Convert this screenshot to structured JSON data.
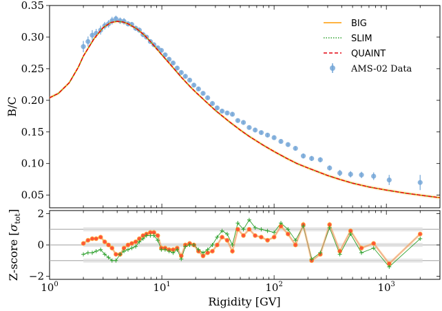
{
  "chart_data": [
    {
      "type": "line",
      "ylabel": "B/C",
      "xscale": "log",
      "xlim": [
        1,
        3000
      ],
      "ylim": [
        0.03,
        0.35
      ],
      "yticks": [
        "0.05",
        "0.10",
        "0.15",
        "0.20",
        "0.25",
        "0.30",
        "0.35"
      ],
      "ytick_values": [
        0.05,
        0.1,
        0.15,
        0.2,
        0.25,
        0.3,
        0.35
      ],
      "legend_position": "top-right",
      "grid": false,
      "model_x": [
        1.0,
        1.2,
        1.5,
        1.8,
        2.0,
        2.5,
        3.0,
        3.5,
        4.0,
        4.5,
        5.0,
        6.0,
        7.0,
        8.0,
        10,
        12,
        15,
        18,
        20,
        25,
        30,
        40,
        50,
        60,
        80,
        100,
        130,
        160,
        200,
        300,
        400,
        500,
        700,
        1000,
        1500,
        2000,
        3000
      ],
      "series": [
        {
          "name": "BIG",
          "color": "#ff9a00",
          "style": "solid",
          "values": [
            0.204,
            0.211,
            0.228,
            0.252,
            0.27,
            0.298,
            0.315,
            0.323,
            0.325,
            0.324,
            0.321,
            0.313,
            0.303,
            0.292,
            0.272,
            0.256,
            0.236,
            0.221,
            0.213,
            0.197,
            0.184,
            0.166,
            0.153,
            0.143,
            0.129,
            0.119,
            0.108,
            0.1,
            0.093,
            0.081,
            0.074,
            0.069,
            0.063,
            0.058,
            0.053,
            0.05,
            0.046
          ]
        },
        {
          "name": "SLIM",
          "color": "#2ca02c",
          "style": "dotted",
          "values": [
            0.204,
            0.211,
            0.228,
            0.252,
            0.27,
            0.298,
            0.315,
            0.323,
            0.325,
            0.324,
            0.321,
            0.313,
            0.303,
            0.292,
            0.272,
            0.256,
            0.236,
            0.221,
            0.213,
            0.197,
            0.184,
            0.166,
            0.153,
            0.143,
            0.129,
            0.119,
            0.108,
            0.1,
            0.093,
            0.081,
            0.074,
            0.069,
            0.063,
            0.058,
            0.053,
            0.05,
            0.046
          ]
        },
        {
          "name": "QUAINT",
          "color": "#e4000f",
          "style": "dashed",
          "values": [
            0.204,
            0.211,
            0.228,
            0.252,
            0.27,
            0.298,
            0.315,
            0.323,
            0.325,
            0.324,
            0.321,
            0.313,
            0.303,
            0.292,
            0.272,
            0.256,
            0.236,
            0.221,
            0.213,
            0.197,
            0.184,
            0.166,
            0.153,
            0.143,
            0.129,
            0.119,
            0.108,
            0.1,
            0.093,
            0.081,
            0.074,
            0.069,
            0.063,
            0.058,
            0.053,
            0.05,
            0.046
          ]
        }
      ],
      "data_series": {
        "name": "AMS-02 Data",
        "color": "#6fa3d6",
        "x": [
          2.0,
          2.2,
          2.4,
          2.6,
          2.85,
          3.1,
          3.35,
          3.6,
          3.9,
          4.25,
          4.6,
          5.0,
          5.4,
          5.85,
          6.3,
          6.8,
          7.3,
          7.9,
          8.5,
          9.2,
          9.9,
          10.7,
          11.6,
          12.6,
          13.7,
          14.9,
          16.2,
          17.7,
          19.3,
          21.2,
          23.3,
          25.6,
          28.2,
          31.1,
          34.4,
          38.2,
          42.5,
          47.5,
          53.3,
          60.0,
          67.8,
          76.8,
          87.4,
          100,
          115,
          133,
          155,
          182,
          216,
          258,
          312,
          385,
          480,
          600,
          770,
          1060,
          2000
        ],
        "y": [
          0.285,
          0.293,
          0.303,
          0.306,
          0.311,
          0.318,
          0.321,
          0.326,
          0.329,
          0.326,
          0.325,
          0.321,
          0.32,
          0.314,
          0.311,
          0.304,
          0.3,
          0.293,
          0.288,
          0.283,
          0.279,
          0.272,
          0.265,
          0.259,
          0.251,
          0.244,
          0.238,
          0.232,
          0.224,
          0.218,
          0.211,
          0.204,
          0.195,
          0.188,
          0.183,
          0.18,
          0.178,
          0.168,
          0.165,
          0.157,
          0.153,
          0.149,
          0.145,
          0.141,
          0.135,
          0.13,
          0.124,
          0.112,
          0.108,
          0.106,
          0.093,
          0.085,
          0.083,
          0.082,
          0.08,
          0.074,
          0.07
        ],
        "err": [
          0.009,
          0.008,
          0.008,
          0.007,
          0.007,
          0.006,
          0.006,
          0.006,
          0.005,
          0.005,
          0.005,
          0.004,
          0.004,
          0.004,
          0.004,
          0.004,
          0.003,
          0.003,
          0.003,
          0.003,
          0.003,
          0.003,
          0.003,
          0.003,
          0.003,
          0.003,
          0.003,
          0.003,
          0.003,
          0.003,
          0.003,
          0.003,
          0.003,
          0.003,
          0.003,
          0.003,
          0.003,
          0.003,
          0.003,
          0.003,
          0.003,
          0.003,
          0.003,
          0.003,
          0.003,
          0.003,
          0.003,
          0.004,
          0.004,
          0.004,
          0.004,
          0.005,
          0.005,
          0.005,
          0.006,
          0.008,
          0.012
        ]
      }
    },
    {
      "type": "line",
      "xlabel": "Rigidity [GV]",
      "ylabel_prefix": "Z-score [",
      "ylabel_symbol": "σ",
      "ylabel_subscript": "tot",
      "ylabel_suffix": "]",
      "xscale": "log",
      "xlim": [
        1,
        3000
      ],
      "ylim": [
        -2.2,
        2.2
      ],
      "xticks": [
        {
          "base": "10",
          "exp": "0",
          "value": 1
        },
        {
          "base": "10",
          "exp": "1",
          "value": 10
        },
        {
          "base": "10",
          "exp": "2",
          "value": 100
        },
        {
          "base": "10",
          "exp": "3",
          "value": 1000
        }
      ],
      "yticks": [
        "−2",
        "0",
        "2"
      ],
      "ytick_values": [
        -2,
        0,
        2
      ],
      "reference_lines": [
        -1,
        0,
        1
      ],
      "reference_band_x": [
        2,
        2100
      ],
      "series": [
        {
          "name": "BIG",
          "color": "#ff9a00",
          "marker": "dot",
          "values": [
            0.1,
            0.3,
            0.4,
            0.4,
            0.5,
            0.2,
            0.0,
            -0.2,
            -0.6,
            -0.6,
            -0.2,
            0.0,
            0.1,
            0.2,
            0.4,
            0.6,
            0.7,
            0.8,
            0.8,
            0.6,
            -0.2,
            -0.2,
            -0.3,
            -0.3,
            -0.2,
            -0.7,
            0.0,
            0.1,
            0.0,
            -0.4,
            -0.7,
            -0.5,
            -0.4,
            0.0,
            0.5,
            0.3,
            -0.4,
            1.0,
            0.6,
            1.0,
            0.6,
            0.5,
            0.3,
            0.5,
            1.2,
            0.7,
            0.0,
            1.3,
            -1.0,
            -0.6,
            1.3,
            -0.4,
            0.9,
            -0.2,
            0.1,
            -1.2,
            0.7
          ]
        },
        {
          "name": "SLIM",
          "color": "#2ca02c",
          "marker": "plus",
          "values": [
            -0.6,
            -0.5,
            -0.5,
            -0.4,
            -0.3,
            -0.6,
            -0.8,
            -1.0,
            -1.0,
            -0.6,
            -0.4,
            -0.3,
            -0.2,
            -0.1,
            0.2,
            0.4,
            0.6,
            0.6,
            0.6,
            0.3,
            -0.3,
            -0.3,
            -0.4,
            -0.5,
            -0.3,
            -0.9,
            -0.1,
            0.0,
            0.0,
            -0.3,
            -0.5,
            -0.3,
            0.0,
            0.5,
            0.9,
            0.7,
            0.0,
            1.4,
            1.0,
            1.6,
            1.1,
            1.0,
            0.9,
            0.8,
            1.4,
            1.0,
            0.3,
            1.2,
            -0.9,
            -0.5,
            1.1,
            -0.6,
            0.7,
            -0.5,
            -0.2,
            -1.4,
            0.4
          ]
        },
        {
          "name": "QUAINT",
          "color": "#ff3b3b",
          "marker": "dot",
          "values": [
            0.1,
            0.3,
            0.4,
            0.4,
            0.5,
            0.2,
            0.0,
            -0.2,
            -0.6,
            -0.6,
            -0.2,
            0.0,
            0.1,
            0.2,
            0.4,
            0.6,
            0.7,
            0.8,
            0.8,
            0.6,
            -0.2,
            -0.2,
            -0.3,
            -0.3,
            -0.2,
            -0.7,
            0.0,
            0.1,
            0.0,
            -0.4,
            -0.7,
            -0.5,
            -0.4,
            0.0,
            0.5,
            0.3,
            -0.4,
            1.0,
            0.6,
            1.0,
            0.6,
            0.5,
            0.3,
            0.5,
            1.2,
            0.7,
            0.0,
            1.3,
            -1.0,
            -0.6,
            1.3,
            -0.4,
            0.9,
            -0.2,
            0.1,
            -1.2,
            0.7
          ]
        }
      ]
    }
  ]
}
